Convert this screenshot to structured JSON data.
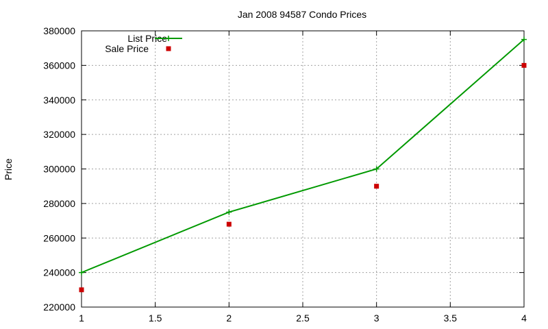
{
  "chart_data": {
    "type": "line",
    "title": "Jan 2008 94587 Condo Prices",
    "xlabel": "",
    "ylabel": "Price",
    "xlim": [
      1,
      4
    ],
    "ylim": [
      220000,
      380000
    ],
    "x_ticks": [
      1,
      1.5,
      2,
      2.5,
      3,
      3.5,
      4
    ],
    "x_tick_labels": [
      "1",
      "1.5",
      "2",
      "2.5",
      "3",
      "3.5",
      "4"
    ],
    "y_ticks": [
      220000,
      240000,
      260000,
      280000,
      300000,
      320000,
      340000,
      360000,
      380000
    ],
    "y_tick_labels": [
      "220000",
      "240000",
      "260000",
      "280000",
      "300000",
      "320000",
      "340000",
      "360000",
      "380000"
    ],
    "grid": true,
    "legend_position": "top-left",
    "series": [
      {
        "name": "List Price",
        "style": "lines-points",
        "marker": "plus",
        "color": "#009900",
        "points": [
          {
            "x": 1,
            "y": 240000
          },
          {
            "x": 2,
            "y": 275000
          },
          {
            "x": 3,
            "y": 300000
          },
          {
            "x": 4,
            "y": 375000
          }
        ]
      },
      {
        "name": "Sale Price",
        "style": "points",
        "marker": "square",
        "color": "#cc0000",
        "points": [
          {
            "x": 1,
            "y": 230000
          },
          {
            "x": 2,
            "y": 268000
          },
          {
            "x": 3,
            "y": 290000
          },
          {
            "x": 4,
            "y": 360000
          }
        ]
      }
    ]
  }
}
